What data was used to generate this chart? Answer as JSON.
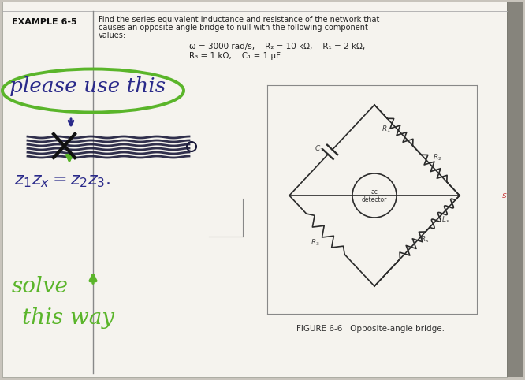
{
  "bg_color": "#c8c4bc",
  "page_color": "#f5f3ee",
  "title": "EXAMPLE 6-5",
  "desc1": "Find the series-equivalent inductance and resistance of the network that",
  "desc2": "causes an opposite-angle bridge to null with the following component",
  "desc3": "values:",
  "param1": "ω = 3000 rad/s,    R₂ = 10 kΩ,    R₁ = 2 kΩ,",
  "param2": "R₃ = 1 kΩ,    C₁ = 1 μF",
  "fig_caption": "FIGURE 6-6   Opposite-angle bridge.",
  "ac_text": "ac\ndetector",
  "please_text": "please use this",
  "equation_text": "z₁ zₓ=z₂ z₃.",
  "solve_text": "solve",
  "way_text": "this way",
  "green_color": "#5ab52a",
  "blue_ink": "#2a2a8a",
  "dark_ink": "#1a1a3a",
  "circuit_color": "#2a2a2a",
  "page_border": "#999990",
  "right_shadow": "#5a5a52"
}
